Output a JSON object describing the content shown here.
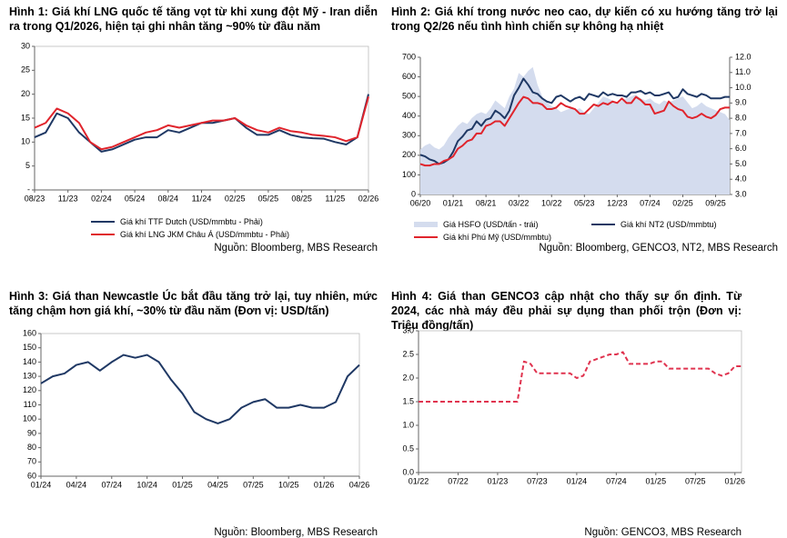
{
  "chart_data": [
    {
      "type": "line",
      "title": "Hình 1: Giá khí LNG quốc tế tăng vọt từ khi xung đột Mỹ - Iran diễn ra trong Q1/2026, hiện tại ghi nhân tăng ~90% từ đầu năm",
      "x": [
        "08/23",
        "09/23",
        "10/23",
        "11/23",
        "12/23",
        "01/24",
        "02/24",
        "03/24",
        "04/24",
        "05/24",
        "06/24",
        "07/24",
        "08/24",
        "09/24",
        "10/24",
        "11/24",
        "12/24",
        "01/25",
        "02/25",
        "03/25",
        "04/25",
        "05/25",
        "06/25",
        "07/25",
        "08/25",
        "09/25",
        "10/25",
        "11/25",
        "12/25",
        "01/26",
        "02/26"
      ],
      "series": [
        {
          "name": "Giá khí TTF Dutch (USD/mmbtu - Phải)",
          "color": "#1f3864",
          "values": [
            11,
            12,
            16,
            15,
            12,
            10,
            8,
            8.5,
            9.5,
            10.5,
            11,
            11,
            12.5,
            12,
            13,
            14,
            14,
            14.5,
            15,
            13,
            11.5,
            11.5,
            12.5,
            11.5,
            11,
            10.8,
            10.7,
            10,
            9.5,
            11,
            20
          ]
        },
        {
          "name": "Giá khí LNG JKM Châu Á (USD/mmbtu - Phải)",
          "color": "#e0242c",
          "values": [
            13,
            14,
            17,
            16,
            14,
            10,
            8.5,
            9,
            10,
            11,
            12,
            12.5,
            13.5,
            13,
            13.5,
            14,
            14.5,
            14.5,
            15,
            13.5,
            12.5,
            12,
            13,
            12.3,
            12,
            11.5,
            11.3,
            11,
            10.2,
            11,
            19.5
          ]
        }
      ],
      "ylim": [
        0,
        30
      ],
      "yticks": [
        {
          "value": 0,
          "label": "-"
        },
        5,
        10,
        15,
        20,
        25,
        30
      ],
      "source": "Nguồn: Bloomberg, MBS Research"
    },
    {
      "type": "line",
      "title": "Hình 2: Giá khí trong nước neo cao, dự kiến có xu hướng tăng trở lại trong Q2/26 nếu tình hình chiến sự không hạ nhiệt",
      "x": [
        "06/20",
        "07/20",
        "08/20",
        "09/20",
        "10/20",
        "11/20",
        "12/20",
        "01/21",
        "02/21",
        "03/21",
        "04/21",
        "05/21",
        "06/21",
        "07/21",
        "08/21",
        "09/21",
        "10/21",
        "11/21",
        "12/21",
        "01/22",
        "02/22",
        "03/22",
        "04/22",
        "05/22",
        "06/22",
        "07/22",
        "08/22",
        "09/22",
        "10/22",
        "11/22",
        "12/22",
        "01/23",
        "02/23",
        "03/23",
        "04/23",
        "05/23",
        "06/23",
        "07/23",
        "08/23",
        "09/23",
        "10/23",
        "11/23",
        "12/23",
        "01/24",
        "02/24",
        "03/24",
        "04/24",
        "05/24",
        "06/24",
        "07/24",
        "08/24",
        "09/24",
        "10/24",
        "11/24",
        "12/24",
        "01/25",
        "02/25",
        "03/25",
        "04/25",
        "05/25",
        "06/25",
        "07/25",
        "08/25",
        "09/25",
        "10/25",
        "11/25",
        "12/25"
      ],
      "series": [
        {
          "name": "Giá HSFO (USD/tấn - trái)",
          "color": "#d4dcee",
          "area": true,
          "values": [
            230,
            250,
            260,
            240,
            230,
            250,
            290,
            320,
            350,
            370,
            360,
            390,
            410,
            420,
            410,
            440,
            480,
            460,
            440,
            500,
            540,
            620,
            600,
            630,
            650,
            560,
            500,
            470,
            450,
            440,
            420,
            430,
            440,
            430,
            440,
            420,
            410,
            440,
            470,
            500,
            490,
            480,
            460,
            480,
            490,
            500,
            510,
            490,
            480,
            490,
            470,
            460,
            480,
            470,
            480,
            490,
            500,
            470,
            440,
            450,
            470,
            450,
            440,
            430,
            420,
            410,
            380
          ]
        },
        {
          "name": "Giá khí NT2 (USD/mmbtu)",
          "color": "#1f3864",
          "axis": "y2",
          "values": [
            5.6,
            5.5,
            5.3,
            5.2,
            5.0,
            5.1,
            5.3,
            5.8,
            6.5,
            6.8,
            7.2,
            7.3,
            7.8,
            7.5,
            7.9,
            8.0,
            8.5,
            8.3,
            8.0,
            8.5,
            9.5,
            10.0,
            10.6,
            10.2,
            9.7,
            9.6,
            9.3,
            9.1,
            9.0,
            9.4,
            9.5,
            9.3,
            9.1,
            9.3,
            9.4,
            9.2,
            9.6,
            9.5,
            9.4,
            9.7,
            9.5,
            9.6,
            9.5,
            9.5,
            9.4,
            9.7,
            9.7,
            9.8,
            9.6,
            9.7,
            9.5,
            9.5,
            9.6,
            9.7,
            9.3,
            9.4,
            9.9,
            9.6,
            9.5,
            9.4,
            9.6,
            9.5,
            9.3,
            9.3,
            9.3,
            9.4,
            9.4
          ]
        },
        {
          "name": "Giá khí Phú Mỹ (USD/mmbtu)",
          "color": "#e0242c",
          "axis": "y2",
          "values": [
            5.0,
            4.9,
            4.9,
            5.0,
            5.0,
            5.2,
            5.3,
            5.5,
            6.0,
            6.2,
            6.5,
            6.6,
            7.0,
            7.0,
            7.5,
            7.6,
            7.8,
            7.8,
            7.5,
            8.0,
            8.5,
            9.0,
            9.4,
            9.3,
            9.0,
            9.0,
            8.9,
            8.6,
            8.6,
            8.7,
            9.0,
            8.8,
            8.7,
            8.6,
            8.3,
            8.3,
            8.6,
            8.9,
            8.8,
            9.0,
            8.9,
            9.1,
            9.0,
            9.3,
            9.0,
            9.0,
            9.4,
            9.2,
            8.9,
            8.9,
            8.3,
            8.4,
            8.5,
            9.1,
            8.8,
            8.6,
            8.5,
            8.1,
            8.0,
            8.1,
            8.3,
            8.1,
            8.0,
            8.2,
            8.6,
            8.7,
            8.7
          ]
        }
      ],
      "ylim": [
        0,
        700
      ],
      "yticks": [
        0,
        100,
        200,
        300,
        400,
        500,
        600,
        700
      ],
      "y2lim": [
        3,
        12
      ],
      "y2ticks": [
        {
          "value": 3,
          "label": "3.0"
        },
        {
          "value": 4,
          "label": "4.0"
        },
        {
          "value": 5,
          "label": "5.0"
        },
        {
          "value": 6,
          "label": "6.0"
        },
        {
          "value": 7,
          "label": "7.0"
        },
        {
          "value": 8,
          "label": "8.0"
        },
        {
          "value": 9,
          "label": "9.0"
        },
        {
          "value": 10,
          "label": "10.0"
        },
        {
          "value": 11,
          "label": "11.0"
        },
        {
          "value": 12,
          "label": "12.0"
        }
      ],
      "source": "Nguồn: Bloomberg, GENCO3, NT2, MBS Research"
    },
    {
      "type": "line",
      "title": "Hình 3: Giá than Newcastle Úc bắt đầu tăng trở lại, tuy nhiên, mức tăng chậm hơn giá khí, ~30% từ đầu năm (Đơn vị: USD/tấn)",
      "x": [
        "01/24",
        "02/24",
        "03/24",
        "04/24",
        "05/24",
        "06/24",
        "07/24",
        "08/24",
        "09/24",
        "10/24",
        "11/24",
        "12/24",
        "01/25",
        "02/25",
        "03/25",
        "04/25",
        "05/25",
        "06/25",
        "07/25",
        "08/25",
        "09/25",
        "10/25",
        "11/25",
        "12/25",
        "01/26",
        "02/26",
        "03/26",
        "04/26"
      ],
      "series": [
        {
          "name": null,
          "color": "#1f3864",
          "values": [
            125,
            130,
            132,
            138,
            140,
            134,
            140,
            145,
            143,
            145,
            140,
            128,
            118,
            105,
            100,
            97,
            100,
            108,
            112,
            114,
            108,
            108,
            110,
            108,
            108,
            112,
            130,
            138
          ]
        }
      ],
      "ylim": [
        60,
        160
      ],
      "yticks": [
        60,
        70,
        80,
        90,
        100,
        110,
        120,
        130,
        140,
        150,
        160
      ],
      "source": "Nguồn: Bloomberg, MBS Research"
    },
    {
      "type": "line",
      "title": "Hình 4: Giá than GENCO3 cập nhật cho thấy sự ổn định. Từ 2024, các nhà máy đều phải sự dụng than phối trộn (Đơn vị: Triệu đồng/tấn)",
      "x": [
        "01/22",
        "02/22",
        "03/22",
        "04/22",
        "05/22",
        "06/22",
        "07/22",
        "08/22",
        "09/22",
        "10/22",
        "11/22",
        "12/22",
        "01/23",
        "02/23",
        "03/23",
        "04/23",
        "05/23",
        "06/23",
        "07/23",
        "08/23",
        "09/23",
        "10/23",
        "11/23",
        "12/23",
        "01/24",
        "02/24",
        "03/24",
        "04/24",
        "05/24",
        "06/24",
        "07/24",
        "08/24",
        "09/24",
        "10/24",
        "11/24",
        "12/24",
        "01/25",
        "02/25",
        "03/25",
        "04/25",
        "05/25",
        "06/25",
        "07/25",
        "08/25",
        "09/25",
        "10/25",
        "11/25",
        "12/25",
        "01/26",
        "02/26"
      ],
      "series": [
        {
          "name": null,
          "color": "#e0334f",
          "dashed": true,
          "values": [
            1.5,
            1.5,
            1.5,
            1.5,
            1.5,
            1.5,
            1.5,
            1.5,
            1.5,
            1.5,
            1.5,
            1.5,
            1.5,
            1.5,
            1.5,
            1.5,
            2.35,
            2.3,
            2.1,
            2.1,
            2.1,
            2.1,
            2.1,
            2.1,
            2.0,
            2.05,
            2.35,
            2.4,
            2.45,
            2.5,
            2.5,
            2.55,
            2.3,
            2.3,
            2.3,
            2.3,
            2.35,
            2.35,
            2.2,
            2.2,
            2.2,
            2.2,
            2.2,
            2.2,
            2.2,
            2.1,
            2.05,
            2.1,
            2.25,
            2.25
          ]
        }
      ],
      "ylim": [
        0,
        3
      ],
      "yticks": [
        {
          "value": 0,
          "label": "0.0"
        },
        {
          "value": 0.5,
          "label": "0.5"
        },
        {
          "value": 1,
          "label": "1.0"
        },
        {
          "value": 1.5,
          "label": "1.5"
        },
        {
          "value": 2,
          "label": "2.0"
        },
        {
          "value": 2.5,
          "label": "2.5"
        },
        {
          "value": 3,
          "label": "3.0"
        }
      ],
      "source": "Nguồn: GENCO3, MBS Research"
    }
  ]
}
